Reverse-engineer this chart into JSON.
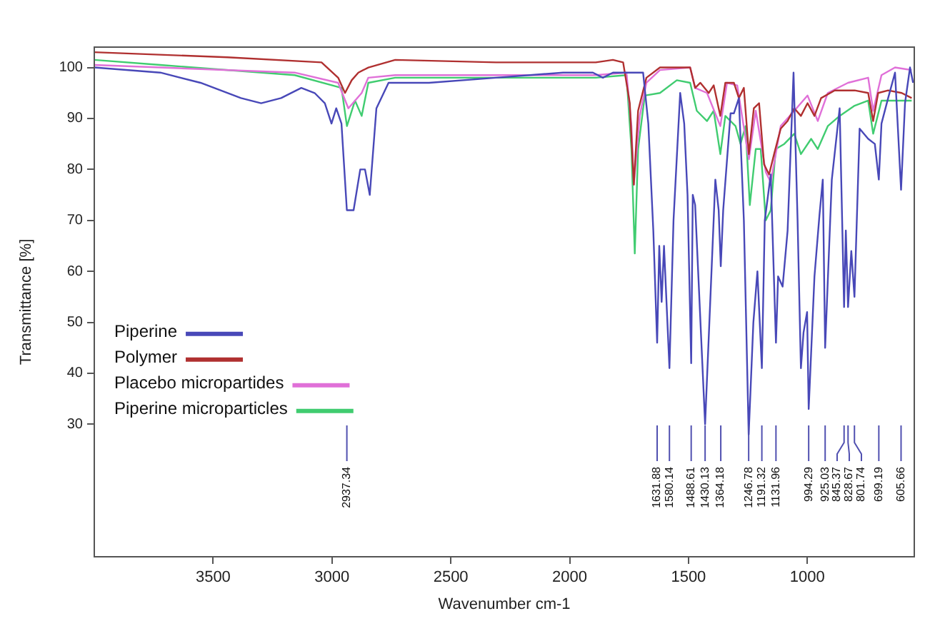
{
  "chart_data": {
    "type": "line",
    "xlabel": "Wavenumber cm-1",
    "ylabel": "Transmittance [%]",
    "xlim": [
      4000,
      550
    ],
    "xticks": [
      3500,
      3000,
      2500,
      2000,
      1500,
      1000
    ],
    "ylim": [
      4,
      104
    ],
    "yticks": [
      30,
      40,
      50,
      60,
      70,
      80,
      90,
      100
    ],
    "grid": false,
    "legend": "left",
    "marker": "none",
    "line_style": "solid",
    "series": [
      {
        "name": "Piperine",
        "color": "#4848b8",
        "x": [
          4000,
          3722,
          3553,
          3383,
          3298,
          3214,
          3129,
          3073,
          3030,
          3002,
          2982,
          2960,
          2937.34,
          2909,
          2881,
          2861,
          2841,
          2813,
          2762,
          2592,
          2310,
          2028,
          1902,
          1860,
          1818,
          1761,
          1691,
          1669,
          1648,
          1631.88,
          1623,
          1613,
          1603,
          1580.14,
          1563,
          1535,
          1518,
          1504,
          1488.61,
          1482,
          1472,
          1430.13,
          1387,
          1373,
          1364.18,
          1354,
          1323,
          1309,
          1288,
          1267,
          1246.78,
          1227,
          1210,
          1191.32,
          1179,
          1154,
          1131.96,
          1123,
          1104,
          1083,
          1058,
          1041,
          1027,
          1016,
          1001,
          994.29,
          970,
          949,
          935,
          925.03,
          897,
          864,
          845.37,
          838,
          828.67,
          815,
          801.74,
          780,
          744,
          716,
          699.19,
          688,
          660,
          631,
          605.66,
          589,
          568,
          555
        ],
        "values": [
          100,
          99,
          97,
          94,
          93,
          94,
          96,
          95,
          93,
          89,
          92,
          89,
          72,
          72,
          80,
          80,
          75,
          92,
          97,
          97,
          98,
          99,
          99,
          98,
          99,
          99,
          99,
          89,
          68,
          46,
          65,
          54,
          65,
          41,
          70,
          95,
          89,
          75,
          42,
          75,
          73,
          30,
          78,
          72,
          61,
          72,
          91,
          91,
          94,
          70,
          28,
          50,
          60,
          41,
          70,
          79,
          46,
          59,
          57,
          68,
          99,
          70,
          41,
          48,
          52,
          33,
          59,
          71,
          78,
          45,
          78,
          92,
          53,
          68,
          53,
          64,
          55,
          88,
          86,
          85,
          78,
          89,
          94,
          99,
          76,
          93,
          100,
          97
        ]
      },
      {
        "name": "Polymer",
        "color": "#b03030",
        "x": [
          4000,
          3440,
          3044,
          2974,
          2945,
          2917,
          2889,
          2847,
          2734,
          2310,
          1890,
          1818,
          1775,
          1747,
          1730,
          1712,
          1677,
          1620,
          1563,
          1493,
          1472,
          1450,
          1415,
          1394,
          1366,
          1345,
          1309,
          1288,
          1267,
          1246,
          1225,
          1203,
          1182,
          1161,
          1140,
          1112,
          1083,
          1055,
          1027,
          999,
          970,
          942,
          885,
          801,
          744,
          723,
          702,
          660,
          603,
          561
        ],
        "values": [
          103,
          102,
          101,
          98,
          95,
          97.5,
          99,
          100,
          101.5,
          101,
          101,
          101.5,
          101,
          93,
          77,
          91.5,
          98,
          100,
          100,
          100,
          96,
          97,
          95,
          96.5,
          90.5,
          97,
          97,
          94,
          96,
          83,
          92,
          93,
          81,
          79,
          83,
          88,
          89.5,
          92,
          90.5,
          93,
          90.5,
          94,
          95.5,
          95.5,
          95,
          89.5,
          95,
          95.5,
          95,
          94
        ]
      },
      {
        "name": "Placebo micropartides",
        "color": "#e070d8",
        "x": [
          4000,
          3722,
          3157,
          2974,
          2931,
          2875,
          2847,
          2734,
          1890,
          1761,
          1740,
          1730,
          1705,
          1677,
          1620,
          1493,
          1472,
          1422,
          1366,
          1338,
          1295,
          1246,
          1217,
          1175,
          1154,
          1112,
          1055,
          999,
          956,
          914,
          829,
          744,
          723,
          688,
          631,
          561
        ],
        "values": [
          100.5,
          100,
          99,
          97,
          92,
          95,
          98,
          98.5,
          98.5,
          99,
          88.5,
          77,
          90.5,
          97,
          99.5,
          100,
          96,
          95,
          88.5,
          97,
          96.5,
          82,
          91.5,
          79.5,
          77.5,
          88.5,
          91.5,
          94.5,
          89.5,
          95,
          97,
          98,
          91.5,
          98.5,
          100,
          99.5
        ]
      },
      {
        "name": "Piperine microparticles",
        "color": "#40cc70",
        "x": [
          4000,
          3722,
          3157,
          2960,
          2937,
          2903,
          2875,
          2847,
          2734,
          1890,
          1761,
          1740,
          1726,
          1712,
          1684,
          1620,
          1549,
          1493,
          1465,
          1422,
          1394,
          1366,
          1345,
          1302,
          1281,
          1260,
          1242,
          1217,
          1196,
          1175,
          1154,
          1133,
          1097,
          1055,
          1027,
          984,
          956,
          914,
          864,
          801,
          744,
          723,
          688,
          631,
          561
        ],
        "values": [
          101.5,
          100.5,
          98.5,
          96,
          88.5,
          93.5,
          90.5,
          97,
          98,
          98,
          98.5,
          84,
          63.5,
          84,
          94.5,
          95,
          97.5,
          97,
          91.5,
          89.5,
          91.5,
          83,
          90.5,
          88.5,
          85,
          88.5,
          73,
          84,
          84,
          70,
          72,
          84,
          85,
          87,
          83,
          86,
          84,
          88.5,
          90.5,
          92.5,
          93.5,
          87,
          93.5,
          93.5,
          93.5
        ]
      }
    ],
    "annotations": [
      {
        "text": "2937.34",
        "x": 2937.34
      },
      {
        "text": "1631.88",
        "x": 1631.88
      },
      {
        "text": "1580.14",
        "x": 1580.14
      },
      {
        "text": "1488.61",
        "x": 1488.61
      },
      {
        "text": "1430.13",
        "x": 1430.13
      },
      {
        "text": "1364.18",
        "x": 1364.18
      },
      {
        "text": "1246.78",
        "x": 1246.78
      },
      {
        "text": "1191.32",
        "x": 1191.32
      },
      {
        "text": "1131.96",
        "x": 1131.96
      },
      {
        "text": "994.29",
        "x": 994.29
      },
      {
        "text": "925.03",
        "x": 925.03
      },
      {
        "text": "845.37",
        "x": 845.37
      },
      {
        "text": "828.67",
        "x": 828.67
      },
      {
        "text": "801.74",
        "x": 801.74
      },
      {
        "text": "699.19",
        "x": 699.19
      },
      {
        "text": "605.66",
        "x": 605.66
      }
    ]
  }
}
